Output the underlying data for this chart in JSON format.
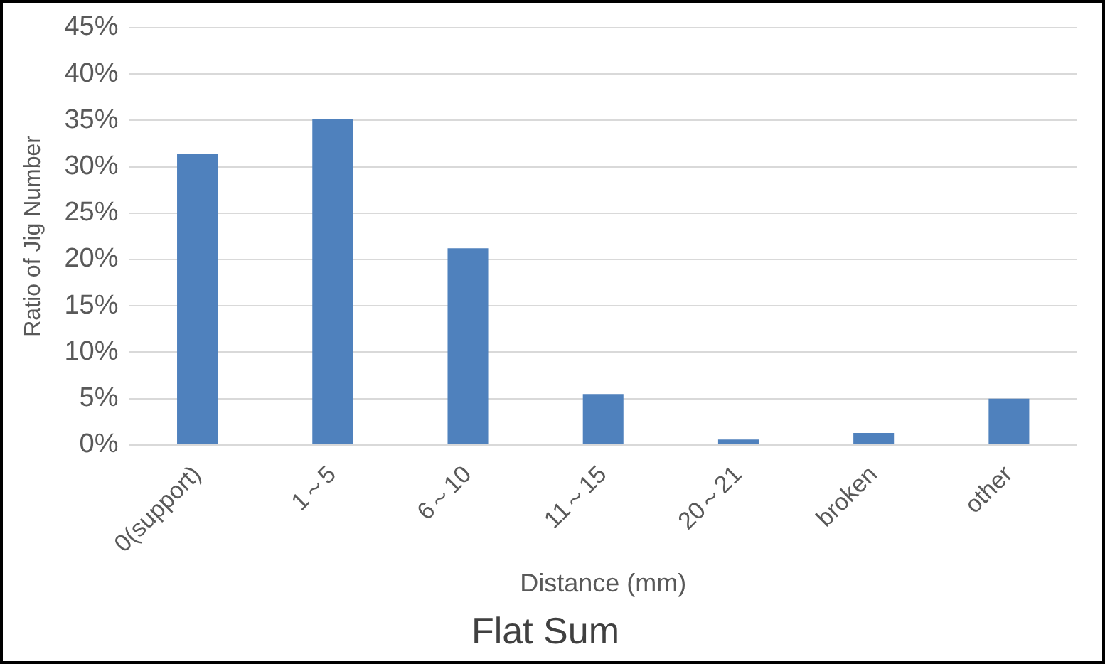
{
  "chart_data": {
    "type": "bar",
    "title": "Flat Sum",
    "xlabel": "Distance (mm)",
    "ylabel": "Ratio of Jig Number",
    "categories": [
      "0(support)",
      "1～5",
      "6～10",
      "11～15",
      "20～21",
      "broken",
      "other"
    ],
    "values": [
      31.4,
      35.1,
      21.2,
      5.5,
      0.6,
      1.3,
      5.0
    ],
    "color": "#4f81bd",
    "ylim": [
      0,
      45
    ],
    "yticks": [
      {
        "value": 0,
        "label": "0%"
      },
      {
        "value": 5,
        "label": "5%"
      },
      {
        "value": 10,
        "label": "10%"
      },
      {
        "value": 15,
        "label": "15%"
      },
      {
        "value": 20,
        "label": "20%"
      },
      {
        "value": 25,
        "label": "25%"
      },
      {
        "value": 30,
        "label": "30%"
      },
      {
        "value": 35,
        "label": "35%"
      },
      {
        "value": 40,
        "label": "40%"
      },
      {
        "value": 45,
        "label": "45%"
      }
    ],
    "grid": "y",
    "legend": false
  }
}
